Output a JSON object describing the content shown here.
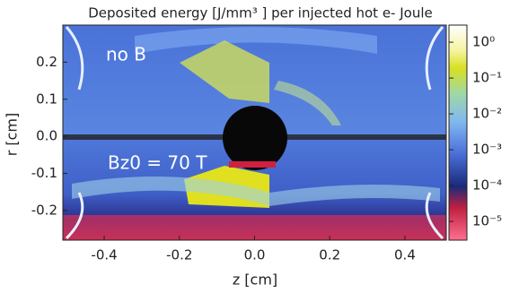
{
  "chart_data": {
    "type": "heatmap",
    "title": "Deposited energy [J/mm³ ] per injected hot e- Joule",
    "x_label": "z  [cm]",
    "y_label": "r  [cm]",
    "annotations": [
      "no B",
      "Bz0 = 70 T"
    ],
    "xlim": [
      -0.51,
      0.51
    ],
    "ylim": [
      -0.28,
      0.3
    ],
    "xticks": [
      -0.4,
      -0.2,
      {
        "value": 0,
        "label": "0.0"
      },
      0.2,
      0.4
    ],
    "yticks": [
      -0.2,
      -0.1,
      {
        "value": 0,
        "label": "0.0"
      },
      0.1,
      0.2
    ],
    "colorbar": {
      "scale": "log",
      "clim": [
        3e-06,
        3
      ],
      "ticks": [
        {
          "value": 1,
          "label": "10⁰"
        },
        {
          "value": 0.1,
          "label": "10⁻¹"
        },
        {
          "value": 0.01,
          "label": "10⁻²"
        },
        {
          "value": 0.001,
          "label": "10⁻³"
        },
        {
          "value": 0.0001,
          "label": "10⁻⁴"
        },
        {
          "value": 1e-05,
          "label": "10⁻⁵"
        }
      ]
    }
  }
}
